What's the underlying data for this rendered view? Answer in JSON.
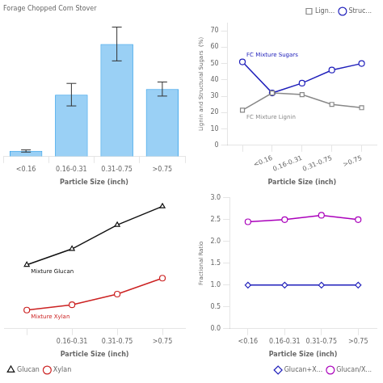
{
  "chart_data": [
    {
      "type": "bar",
      "title": "Forage Chopped Corn Stover",
      "categories": [
        "<0.16",
        "0.16-0.31",
        "0.31-0.75",
        ">0.75"
      ],
      "values": [
        2.0,
        22.0,
        40.0,
        24.0
      ],
      "errors": [
        0.4,
        4.0,
        6.0,
        2.5
      ],
      "xlabel": "Particle Size (inch)",
      "ylim": [
        0,
        50
      ],
      "grid": false,
      "tick_labels": "x"
    },
    {
      "type": "line",
      "categories": [
        null,
        "<0.16",
        "0.16-0.31",
        "0.31-0.75",
        ">0.75"
      ],
      "series": [
        {
          "name": "Lign...",
          "color": "#888888",
          "marker": "square",
          "values": [
            21.5,
            32.0,
            31.0,
            25.0,
            23.0
          ],
          "annotation": "FC Mixture Lignin"
        },
        {
          "name": "Struc...",
          "color": "#2020bb",
          "marker": "circle",
          "values": [
            51.0,
            32.0,
            38.0,
            46.0,
            50.0
          ],
          "annotation": "FC Mixture Sugars"
        }
      ],
      "xlabel": "Particle Size (inch)",
      "ylabel": "Lignin and Structural Sugars  (%)",
      "ylim": [
        0,
        75
      ],
      "yticks": [
        0,
        10,
        20,
        30,
        40,
        50,
        60,
        70
      ],
      "grid": false,
      "legend": "upper right"
    },
    {
      "type": "line",
      "categories": [
        null,
        "0.16-0.31",
        "0.31-0.75",
        ">0.75"
      ],
      "series": [
        {
          "name": "Glucan",
          "color": "#111111",
          "marker": "triangle",
          "values": [
            17.0,
            20.0,
            24.5,
            28.0
          ],
          "annotation": "Mixture Glucan"
        },
        {
          "name": "Xylan",
          "color": "#cc2222",
          "marker": "circle",
          "values": [
            8.5,
            9.5,
            11.5,
            14.5
          ],
          "annotation": "Mixture Xylan"
        }
      ],
      "xlabel": "Particle Size (inch)",
      "ylim": [
        5,
        30
      ],
      "grid": false,
      "legend": "lower left",
      "tick_labels": "x"
    },
    {
      "type": "line",
      "categories": [
        "<0.16",
        "0.16-0.31",
        "0.31-0.75",
        ">0.75"
      ],
      "series": [
        {
          "name": "Glucan+X...",
          "color": "#2020bb",
          "marker": "diamond",
          "values": [
            1.0,
            1.0,
            1.0,
            1.0
          ]
        },
        {
          "name": "Glucan/X...",
          "color": "#aa00bb",
          "marker": "circle",
          "values": [
            2.45,
            2.5,
            2.6,
            2.5
          ]
        }
      ],
      "xlabel": "Particle Size (inch)",
      "ylabel": "Fractional Ratio",
      "ylim": [
        0,
        3.0
      ],
      "yticks": [
        {
          "value": 0,
          "label": "0.0"
        },
        0.5,
        {
          "value": 1,
          "label": "1.0"
        },
        1.5,
        {
          "value": 2,
          "label": "2.0"
        },
        2.5,
        {
          "value": 3,
          "label": "3.0"
        }
      ],
      "grid": false,
      "legend": "lower right"
    }
  ]
}
